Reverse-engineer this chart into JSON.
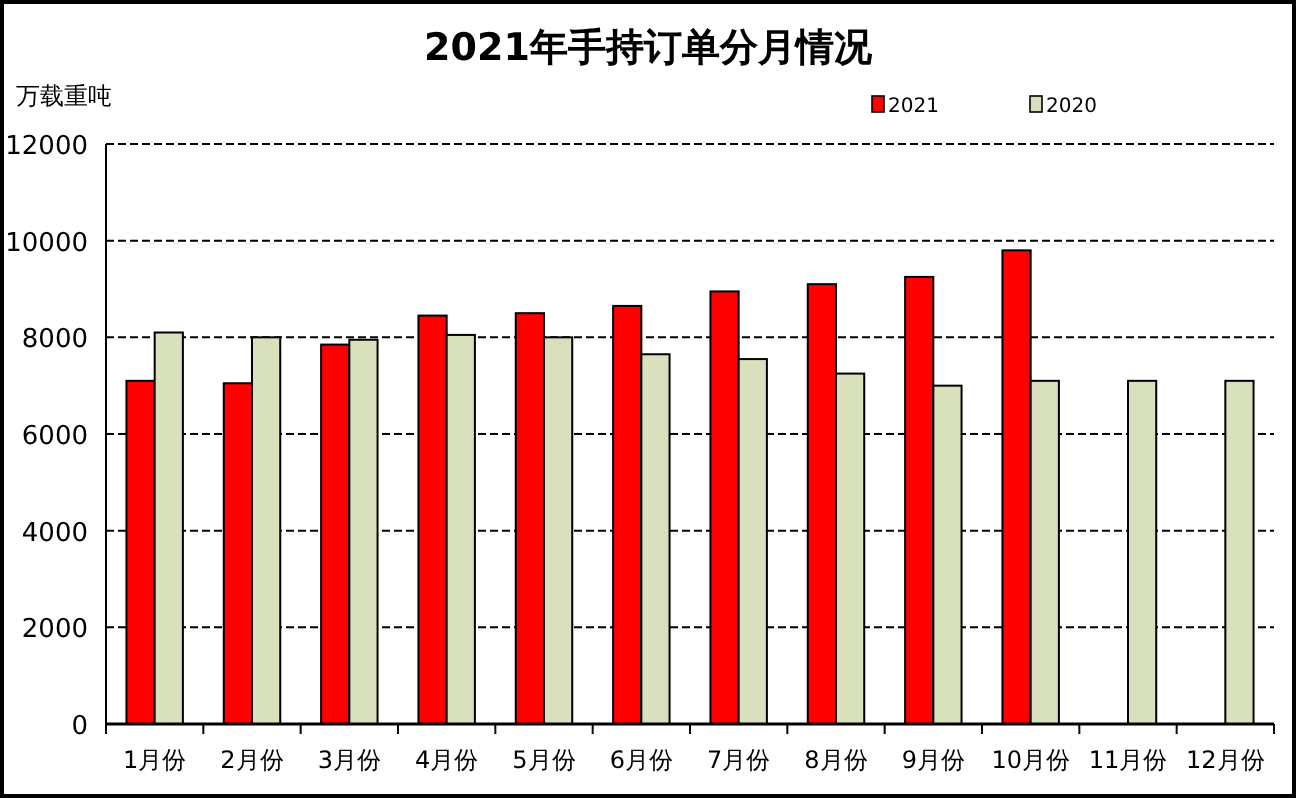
{
  "chart_data": {
    "type": "bar",
    "title": "2021年手持订单分月情况",
    "ylabel": "万载重吨",
    "categories": [
      "1月份",
      "2月份",
      "3月份",
      "4月份",
      "5月份",
      "6月份",
      "7月份",
      "8月份",
      "9月份",
      "10月份",
      "11月份",
      "12月份"
    ],
    "series": [
      {
        "name": "2021",
        "color": "#ff0000",
        "values": [
          7100,
          7050,
          7850,
          8450,
          8500,
          8650,
          8950,
          9100,
          9250,
          9800,
          null,
          null
        ]
      },
      {
        "name": "2020",
        "color": "#d8e0bc",
        "values": [
          8100,
          8000,
          7950,
          8050,
          8000,
          7650,
          7550,
          7250,
          7000,
          7100,
          7100,
          7100
        ]
      }
    ],
    "ylim": [
      0,
      12000
    ],
    "yticks": [
      0,
      2000,
      4000,
      6000,
      8000,
      10000,
      12000
    ],
    "grid": "y",
    "legend": "top right"
  }
}
